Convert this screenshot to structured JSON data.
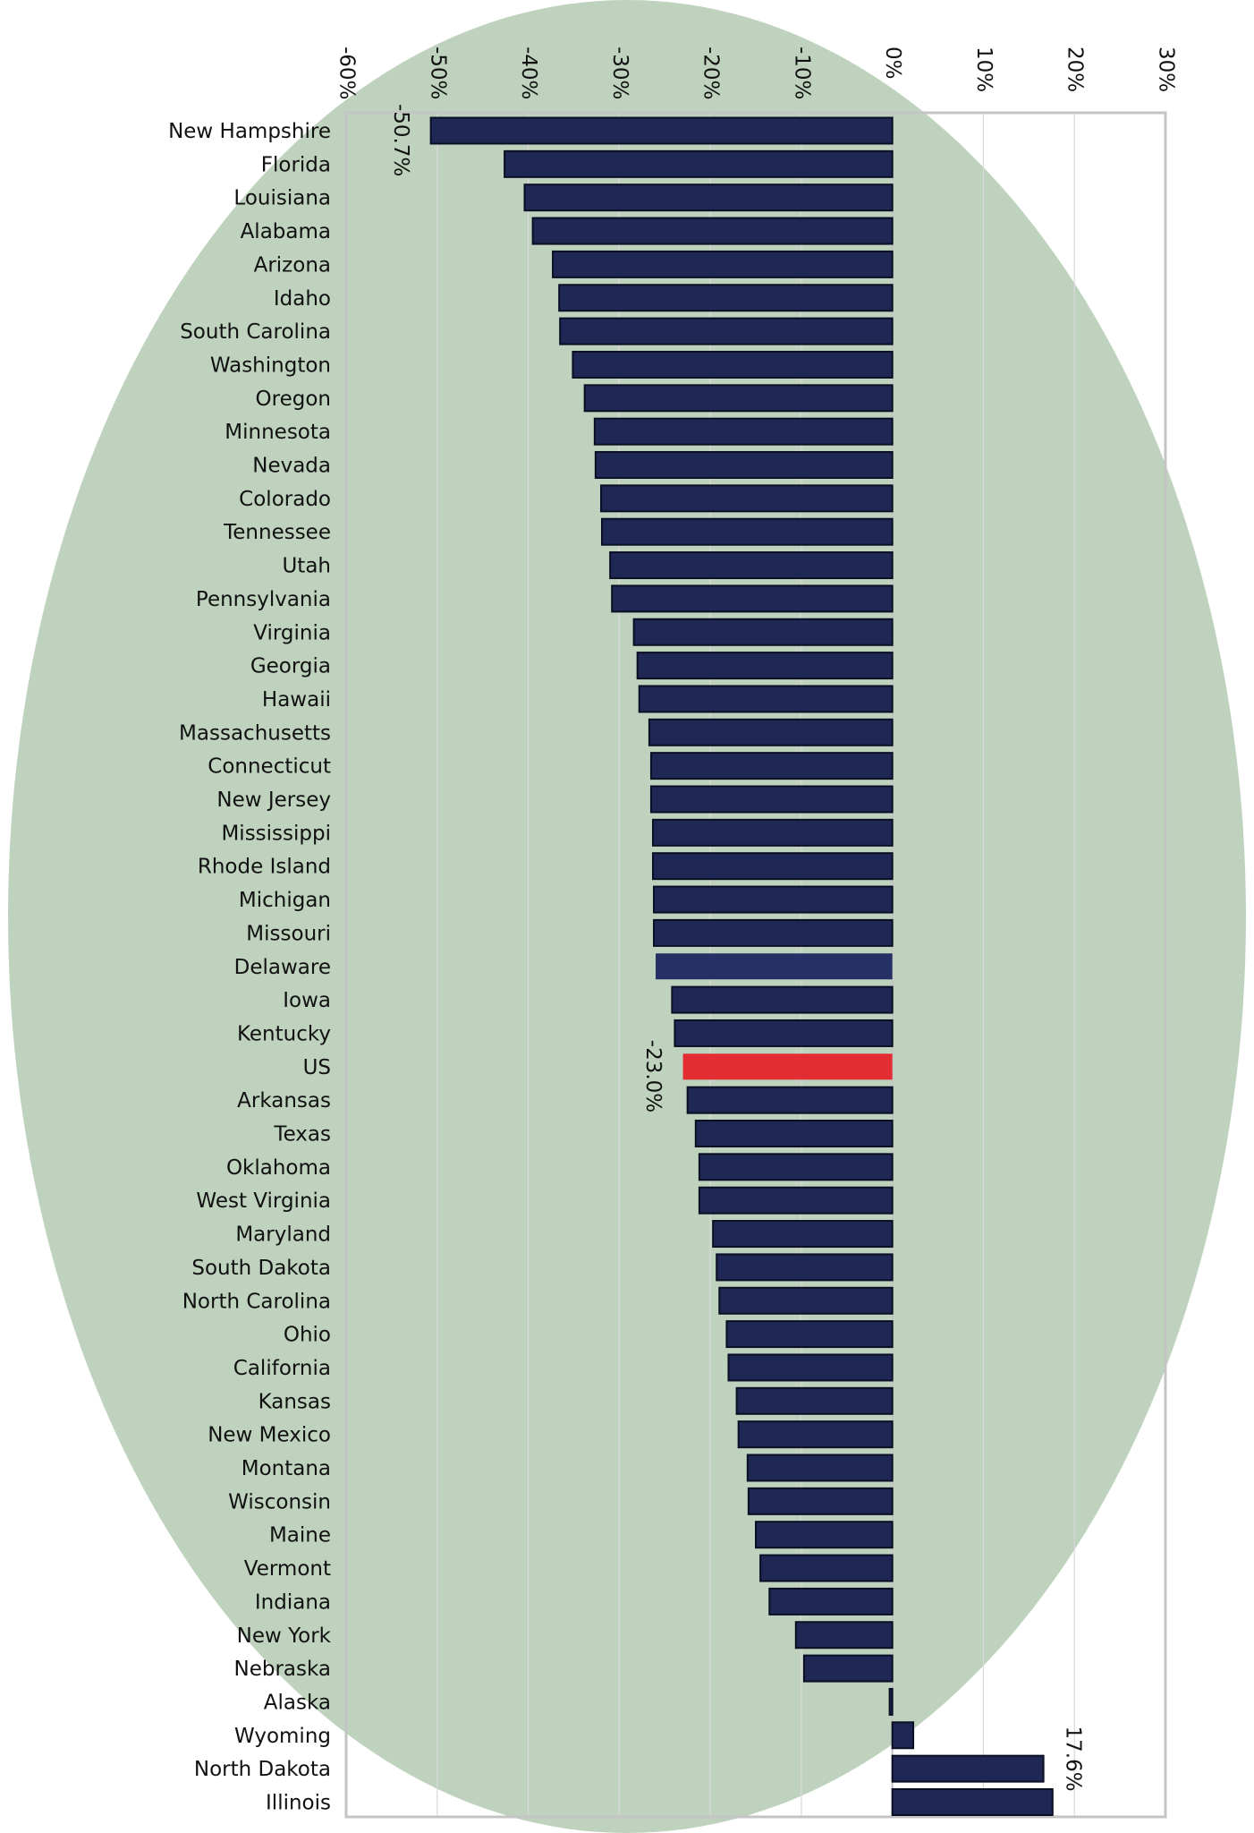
{
  "colors": {
    "background_ellipse": "#bed2be",
    "bar": "#1f2755",
    "bar_highlight": "#e22d32",
    "bar_special": "#243066",
    "bar_outline": "#0b0f24",
    "frame": "#c4c4c4",
    "grid": "#d9d9d9",
    "text": "#111111"
  },
  "chart_data": {
    "type": "bar",
    "orientation": "horizontal",
    "grid": true,
    "xlim": [
      -60,
      30
    ],
    "x_ticks": [
      -60,
      -50,
      -40,
      -30,
      -20,
      -10,
      0,
      10,
      20,
      30
    ],
    "x_tick_labels": [
      "-60%",
      "-50%",
      "-40%",
      "-30%",
      "-20%",
      "-10%",
      "0%",
      "10%",
      "20%",
      "30%"
    ],
    "categories": [
      "New Hampshire",
      "Florida",
      "Louisiana",
      "Alabama",
      "Arizona",
      "Idaho",
      "South Carolina",
      "Washington",
      "Oregon",
      "Minnesota",
      "Nevada",
      "Colorado",
      "Tennessee",
      "Utah",
      "Pennsylvania",
      "Virginia",
      "Georgia",
      "Hawaii",
      "Massachusetts",
      "Connecticut",
      "New Jersey",
      "Mississippi",
      "Rhode Island",
      "Michigan",
      "Missouri",
      "Delaware",
      "Iowa",
      "Kentucky",
      "US",
      "Arkansas",
      "Texas",
      "Oklahoma",
      "West Virginia",
      "Maryland",
      "South Dakota",
      "North Carolina",
      "Ohio",
      "California",
      "Kansas",
      "New Mexico",
      "Montana",
      "Wisconsin",
      "Maine",
      "Vermont",
      "Indiana",
      "New York",
      "Nebraska",
      "Alaska",
      "Wyoming",
      "North Dakota",
      "Illinois"
    ],
    "values": [
      -50.7,
      -42.6,
      -40.4,
      -39.5,
      -37.3,
      -36.6,
      -36.5,
      -35.1,
      -33.8,
      -32.7,
      -32.6,
      -32.0,
      -31.9,
      -31.0,
      -30.8,
      -28.4,
      -28.0,
      -27.8,
      -26.7,
      -26.5,
      -26.5,
      -26.3,
      -26.3,
      -26.2,
      -26.2,
      -26.0,
      -24.2,
      -23.9,
      -23.0,
      -22.5,
      -21.6,
      -21.2,
      -21.2,
      -19.7,
      -19.3,
      -19.0,
      -18.2,
      -18.0,
      -17.1,
      -16.9,
      -15.9,
      -15.8,
      -15.0,
      -14.5,
      -13.5,
      -10.6,
      -9.7,
      -0.3,
      2.3,
      16.6,
      17.6
    ],
    "highlight_category": "US",
    "special_category": "Delaware",
    "data_labels": [
      {
        "category": "New Hampshire",
        "text": "-50.7%"
      },
      {
        "category": "US",
        "text": "-23.0%"
      },
      {
        "category": "Illinois",
        "text": "17.6%"
      }
    ]
  }
}
